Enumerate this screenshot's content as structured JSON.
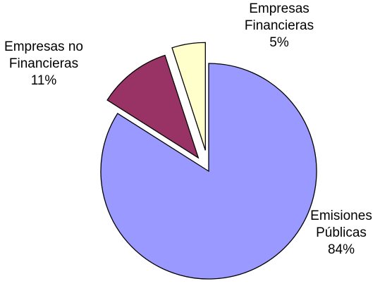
{
  "chart_data": {
    "type": "pie",
    "exploded": true,
    "slices": [
      {
        "label": [
          "Emisiones",
          "Públicas"
        ],
        "value": 84,
        "value_label": "84%",
        "color": "#9999FF"
      },
      {
        "label": [
          "Empresas no",
          "Financieras"
        ],
        "value": 11,
        "value_label": "11%",
        "color": "#993366"
      },
      {
        "label": [
          "Empresas",
          "Financieras"
        ],
        "value": 5,
        "value_label": "5%",
        "color": "#FFFFCC"
      }
    ]
  }
}
